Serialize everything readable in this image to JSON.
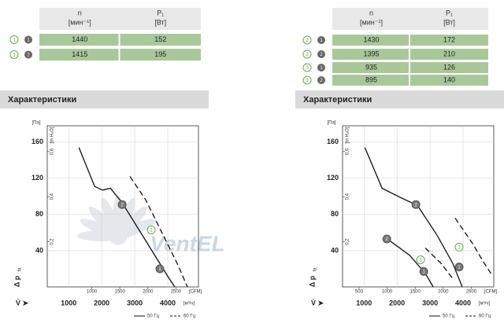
{
  "panels": [
    {
      "table": {
        "header": {
          "n": "n",
          "n_unit": "[мин⁻¹]",
          "p": "P₁",
          "p_unit": "[Вт]"
        },
        "rows": [
          {
            "curve": "1",
            "variant": "1",
            "n": 1440,
            "p": 152
          },
          {
            "curve": "1",
            "variant": "2",
            "n": 1415,
            "p": 195
          }
        ]
      },
      "section_title": "Характеристики",
      "chart": {
        "type": "line",
        "y_label": "Δ p",
        "y_sub": "fa",
        "y_unit": "[Па]",
        "y2_unit": "[in H₂O]",
        "x_label": "V̇ ➤",
        "x_unit": "[м³/ч]",
        "x2_unit": "[CFM]",
        "xlim": [
          350,
          4930
        ],
        "ylim": [
          0,
          178
        ],
        "xticks": [
          1000,
          2000,
          3000,
          4000
        ],
        "yticks": [
          40,
          80,
          120,
          160
        ],
        "x2ticks": [
          1000,
          1500,
          2000,
          2500
        ],
        "y2ticks": [
          {
            "value": 0.2,
            "label": "0,2"
          },
          {
            "value": 0.4,
            "label": "0,4"
          },
          {
            "value": 0.6,
            "label": "0,6"
          }
        ],
        "watermark": "VentEL",
        "legend": {
          "solid": "50 Гц",
          "dashed": "60 Гц"
        },
        "series": [
          {
            "dash": false,
            "x": [
              1310,
              1786,
              2024,
              2262,
              2619,
              3095,
              3690,
              4048,
              4214
            ],
            "values": [
              154,
              111,
              107,
              109,
              93,
              65,
              30,
              9,
              0
            ]
          },
          {
            "dash": true,
            "x": [
              2857,
              3333,
              3810,
              4286,
              4595
            ],
            "values": [
              122,
              96,
              61,
              26,
              0
            ]
          }
        ],
        "points": [
          {
            "label": "2",
            "style": "dark",
            "x": 2619,
            "y": 91
          },
          {
            "label": "1",
            "style": "green",
            "x": 3500,
            "y": 63
          },
          {
            "label": "1",
            "style": "dark",
            "x": 3762,
            "y": 20
          }
        ]
      }
    },
    {
      "table": {
        "header": {
          "n": "n",
          "n_unit": "[мин⁻¹]",
          "p": "P₁",
          "p_unit": "[Вт]"
        },
        "rows": [
          {
            "curve": "2",
            "variant": "1",
            "n": 1430,
            "p": 172
          },
          {
            "curve": "2",
            "variant": "2",
            "n": 1395,
            "p": 210
          },
          {
            "curve": "3",
            "variant": "1",
            "n": 935,
            "p": 126
          },
          {
            "curve": "3",
            "variant": "2",
            "n": 895,
            "p": 140
          }
        ]
      },
      "section_title": "Характеристики",
      "chart": {
        "type": "line",
        "y_label": "Δ p",
        "y_sub": "fa",
        "y_unit": "[Па]",
        "y2_unit": "[in H₂O]",
        "x_label": "V̇ ➤",
        "x_unit": "[м³/ч]",
        "x2_unit": "[CFM]",
        "xlim": [
          350,
          4930
        ],
        "ylim": [
          0,
          178
        ],
        "xticks": [
          1000,
          2000,
          3000,
          4000
        ],
        "yticks": [
          40,
          80,
          120,
          160
        ],
        "x2ticks": [
          500,
          1000,
          1500,
          2000,
          2500
        ],
        "y2ticks": [
          {
            "value": 0.2,
            "label": "0,2"
          },
          {
            "value": 0.4,
            "label": "0,4"
          },
          {
            "value": 0.6,
            "label": "0,6"
          }
        ],
        "legend": {
          "solid": "50 Гц",
          "dashed": "60 Гц"
        },
        "series": [
          {
            "dash": false,
            "x": [
              1024,
              1548,
              2143,
              2619,
              3214,
              3690,
              3976
            ],
            "values": [
              154,
              109,
              98,
              90,
              57,
              26,
              0
            ]
          },
          {
            "dash": false,
            "x": [
              1667,
              2381,
              2857,
              3095
            ],
            "values": [
              54,
              35,
              15,
              0
            ]
          },
          {
            "dash": true,
            "x": [
              3762,
              4286,
              4643,
              4881
            ],
            "values": [
              76,
              48,
              26,
              13
            ]
          },
          {
            "dash": true,
            "x": [
              2857,
              3333,
              3690
            ],
            "values": [
              43,
              26,
              9
            ]
          }
        ],
        "points": [
          {
            "label": "2",
            "style": "dark",
            "x": 2571,
            "y": 91
          },
          {
            "label": "2",
            "style": "dark",
            "x": 1690,
            "y": 53
          },
          {
            "label": "3",
            "style": "green",
            "x": 2714,
            "y": 30
          },
          {
            "label": "1",
            "style": "dark",
            "x": 2810,
            "y": 17
          },
          {
            "label": "1",
            "style": "dark",
            "x": 3881,
            "y": 22
          },
          {
            "label": "2",
            "style": "green",
            "x": 3881,
            "y": 44
          }
        ]
      }
    }
  ]
}
